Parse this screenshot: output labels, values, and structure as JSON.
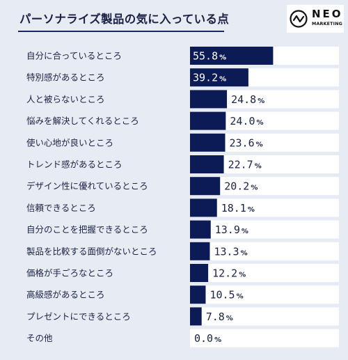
{
  "title": "パーソナライズ製品の気に入っている点",
  "logo": {
    "name": "NEO",
    "sub": "MARKETING"
  },
  "colors": {
    "bar": "#0c1a55",
    "track": "#ffffff",
    "background": "#e7ebf3",
    "text": "#1b2244"
  },
  "chart_data": {
    "type": "bar",
    "orientation": "horizontal",
    "categories": [
      "自分に合っているところ",
      "特別感があるところ",
      "人と被らないところ",
      "悩みを解決してくれるところ",
      "使い心地が良いところ",
      "トレンド感があるところ",
      "デザイン性に優れているところ",
      "信頼できるところ",
      "自分のことを把握できるところ",
      "製品を比較する面倒がないところ",
      "価格が手ごろなところ",
      "高級感があるところ",
      "プレゼントにできるところ",
      "その他"
    ],
    "values": [
      55.8,
      39.2,
      24.8,
      24.0,
      23.6,
      22.7,
      20.2,
      18.1,
      13.9,
      13.3,
      12.2,
      10.5,
      7.8,
      0.0
    ],
    "value_labels": [
      "55.8",
      "39.2",
      "24.8",
      "24.0",
      "23.6",
      "22.7",
      "20.2",
      "18.1",
      "13.9",
      "13.3",
      "12.2",
      "10.5",
      "7.8",
      "0.0"
    ],
    "unit": "%",
    "xlim": [
      0,
      100
    ]
  }
}
